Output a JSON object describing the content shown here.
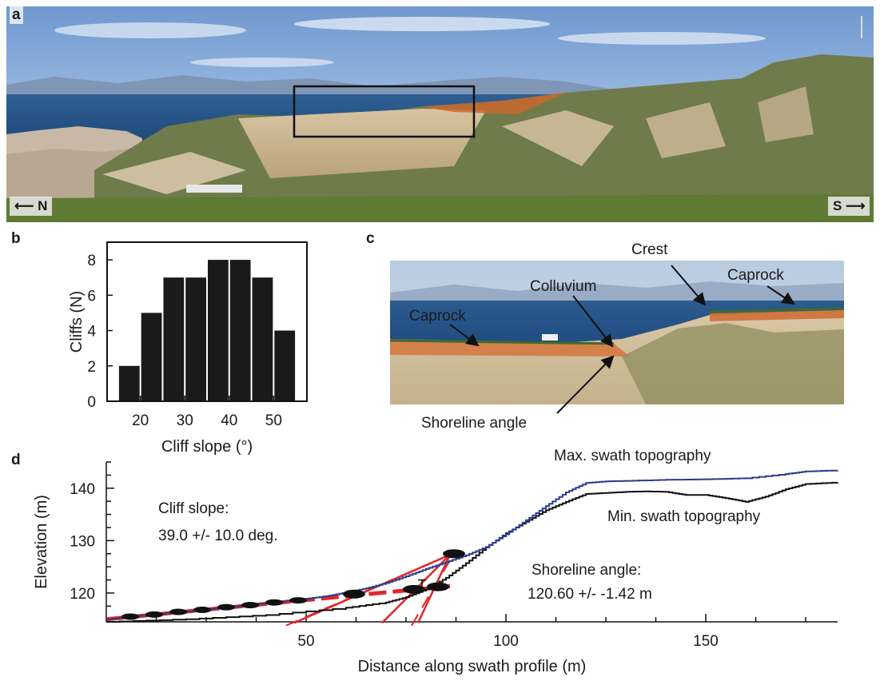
{
  "panels": {
    "a": {
      "letter": "a",
      "north_label": "N",
      "south_label": "S",
      "north_arrow_icon": "arrow-left-icon",
      "south_arrow_icon": "arrow-right-icon"
    },
    "b": {
      "letter": "b"
    },
    "c": {
      "letter": "c",
      "labels": {
        "crest": "Crest",
        "caprock_right": "Caprock",
        "caprock_left": "Caprock",
        "colluvium": "Colluvium",
        "shoreline_angle": "Shoreline angle"
      }
    },
    "d": {
      "letter": "d",
      "annotations": {
        "max_topo": "Max. swath topography",
        "min_topo": "Min. swath topography",
        "cliff_slope_title": "Cliff slope:",
        "cliff_slope_value": "39.0 +/- 10.0 deg.",
        "shoreline_title": "Shoreline angle:",
        "shoreline_value": "120.60 +/- -1.42 m"
      }
    }
  },
  "colors": {
    "bar": "#1a1a1a",
    "max_topo_line": "#2a3d8f",
    "min_topo_line": "#111111",
    "fit_lines": "#e0262a",
    "sea": "#24558a",
    "sky": "#a9c6e6"
  },
  "chart_data": [
    {
      "type": "bar",
      "panel": "b",
      "title": "",
      "xlabel": "Cliff slope (°)",
      "ylabel": "Cliffs (N)",
      "bin_centers": [
        17.5,
        22.5,
        27.5,
        32.5,
        37.5,
        42.5,
        47.5,
        52.5
      ],
      "values": [
        2,
        5,
        7,
        7,
        8,
        8,
        7,
        4
      ],
      "xlim": [
        12.5,
        57.5
      ],
      "ylim": [
        0,
        9
      ],
      "xticks": [
        20,
        30,
        40,
        50
      ],
      "yticks": [
        0,
        2,
        4,
        6,
        8
      ],
      "grid": false
    },
    {
      "type": "line",
      "panel": "d",
      "title": "",
      "xlabel": "Distance along swath profile (m)",
      "ylabel": "Elevation (m)",
      "xlim": [
        0,
        183
      ],
      "ylim": [
        114.5,
        145
      ],
      "xticks": [
        50,
        100,
        150
      ],
      "yticks": [
        120,
        130,
        140
      ],
      "grid": false,
      "series": [
        {
          "name": "Max. swath topography",
          "x": [
            0,
            10,
            20,
            30,
            40,
            50,
            55,
            60,
            65,
            70,
            75,
            80,
            85,
            90,
            95,
            100,
            105,
            110,
            115,
            120,
            125,
            130,
            140,
            150,
            160,
            170,
            175,
            183
          ],
          "y": [
            115,
            115.8,
            116.5,
            117.3,
            118.1,
            118.9,
            119.4,
            120.1,
            120.9,
            121.9,
            123.2,
            124.6,
            125.9,
            127.2,
            128.8,
            131.2,
            133.9,
            136.6,
            139.2,
            141.0,
            141.3,
            141.4,
            141.6,
            141.7,
            141.9,
            142.7,
            143.2,
            143.4
          ]
        },
        {
          "name": "Min. swath topography",
          "x": [
            0,
            20,
            40,
            60,
            70,
            75,
            80,
            85,
            90,
            95,
            100,
            105,
            110,
            115,
            120,
            125,
            130,
            135,
            140,
            145,
            150,
            155,
            160,
            165,
            170,
            175,
            183
          ],
          "y": [
            114.5,
            115,
            115.8,
            117.2,
            118.2,
            119.2,
            120.7,
            122.9,
            125.7,
            128.7,
            131.4,
            133.6,
            135.8,
            137.4,
            138.9,
            139.1,
            139.3,
            139.4,
            139.3,
            138.7,
            138.7,
            138.1,
            137.4,
            138.4,
            139.8,
            140.8,
            141.1
          ]
        }
      ],
      "fits": {
        "platform_fit": {
          "x": [
            0,
            86
          ],
          "y": [
            115.0,
            121.3
          ]
        },
        "cliff_fits": [
          {
            "x": [
              47,
              86
            ],
            "y": [
              114.3,
              127.3
            ]
          },
          {
            "x": [
              69,
              86
            ],
            "y": [
              114.3,
              127.3
            ]
          },
          {
            "x": [
              78,
              86
            ],
            "y": [
              114.3,
              127.3
            ]
          }
        ],
        "intersections": [
          {
            "x": 62,
            "y": 119.8
          },
          {
            "x": 77,
            "y": 120.7
          },
          {
            "x": 83,
            "y": 121.2
          },
          {
            "x": 87,
            "y": 127.5
          }
        ],
        "bead_points": {
          "x": [
            6,
            12,
            18,
            24,
            30,
            36,
            42,
            48
          ],
          "y": [
            115.5,
            115.9,
            116.4,
            116.8,
            117.3,
            117.7,
            118.2,
            118.6
          ]
        }
      }
    }
  ]
}
